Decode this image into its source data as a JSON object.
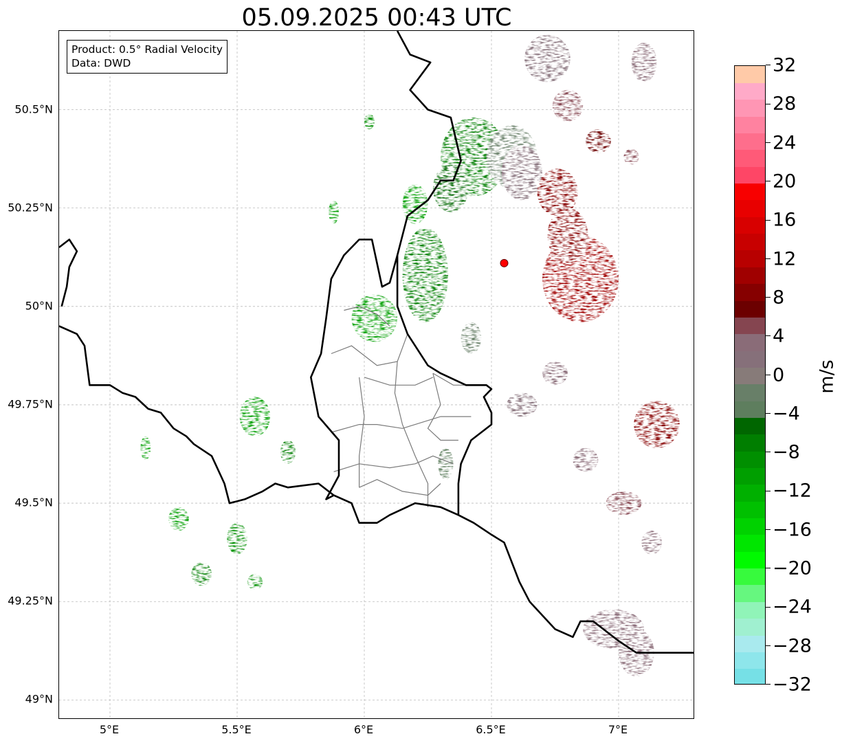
{
  "title": "05.09.2025 00:43 UTC",
  "info_box": {
    "line1": "Product: 0.5° Radial Velocity",
    "line2": "Data: DWD"
  },
  "map": {
    "lon_range": [
      4.8,
      7.3
    ],
    "lat_range": [
      48.95,
      50.7
    ],
    "lon_ticks": [
      {
        "value": 5.0,
        "label": "5°E"
      },
      {
        "value": 5.5,
        "label": "5.5°E"
      },
      {
        "value": 6.0,
        "label": "6°E"
      },
      {
        "value": 6.5,
        "label": "6.5°E"
      },
      {
        "value": 7.0,
        "label": "7°E"
      }
    ],
    "lat_ticks": [
      {
        "value": 50.5,
        "label": "50.5°N"
      },
      {
        "value": 50.25,
        "label": "50.25°N"
      },
      {
        "value": 50.0,
        "label": "50°N"
      },
      {
        "value": 49.75,
        "label": "49.75°N"
      },
      {
        "value": 49.5,
        "label": "49.5°N"
      },
      {
        "value": 49.25,
        "label": "49.25°N"
      },
      {
        "value": 49.0,
        "label": "49°N"
      }
    ],
    "gridlines": true,
    "radar_site": {
      "lon": 6.55,
      "lat": 50.11,
      "color": "#ff0000"
    },
    "echo_areas": [
      {
        "lon": 6.43,
        "lat": 50.38,
        "rx": 0.13,
        "ry": 0.1,
        "velocity": -7
      },
      {
        "lon": 6.34,
        "lat": 50.3,
        "rx": 0.07,
        "ry": 0.06,
        "velocity": -5
      },
      {
        "lon": 6.58,
        "lat": 50.38,
        "rx": 0.1,
        "ry": 0.08,
        "velocity": -2
      },
      {
        "lon": 6.62,
        "lat": 50.34,
        "rx": 0.08,
        "ry": 0.07,
        "velocity": 1
      },
      {
        "lon": 6.76,
        "lat": 50.29,
        "rx": 0.08,
        "ry": 0.06,
        "velocity": 9
      },
      {
        "lon": 6.85,
        "lat": 50.07,
        "rx": 0.15,
        "ry": 0.11,
        "velocity": 10
      },
      {
        "lon": 6.8,
        "lat": 50.18,
        "rx": 0.08,
        "ry": 0.07,
        "velocity": 9
      },
      {
        "lon": 6.24,
        "lat": 50.08,
        "rx": 0.09,
        "ry": 0.12,
        "velocity": -8
      },
      {
        "lon": 6.04,
        "lat": 49.97,
        "rx": 0.09,
        "ry": 0.06,
        "velocity": -10
      },
      {
        "lon": 6.2,
        "lat": 50.26,
        "rx": 0.05,
        "ry": 0.05,
        "velocity": -11
      },
      {
        "lon": 6.72,
        "lat": 50.63,
        "rx": 0.09,
        "ry": 0.06,
        "velocity": 2
      },
      {
        "lon": 6.8,
        "lat": 50.51,
        "rx": 0.06,
        "ry": 0.04,
        "velocity": 5
      },
      {
        "lon": 7.1,
        "lat": 50.62,
        "rx": 0.05,
        "ry": 0.05,
        "velocity": 4
      },
      {
        "lon": 6.92,
        "lat": 50.42,
        "rx": 0.05,
        "ry": 0.03,
        "velocity": 7
      },
      {
        "lon": 7.15,
        "lat": 49.7,
        "rx": 0.09,
        "ry": 0.06,
        "velocity": 9
      },
      {
        "lon": 6.62,
        "lat": 49.75,
        "rx": 0.06,
        "ry": 0.03,
        "velocity": 1
      },
      {
        "lon": 6.75,
        "lat": 49.83,
        "rx": 0.05,
        "ry": 0.03,
        "velocity": 4
      },
      {
        "lon": 6.98,
        "lat": 49.18,
        "rx": 0.12,
        "ry": 0.05,
        "velocity": 3
      },
      {
        "lon": 7.07,
        "lat": 49.12,
        "rx": 0.07,
        "ry": 0.06,
        "velocity": 4
      },
      {
        "lon": 7.02,
        "lat": 49.5,
        "rx": 0.07,
        "ry": 0.03,
        "velocity": 5
      },
      {
        "lon": 7.13,
        "lat": 49.4,
        "rx": 0.04,
        "ry": 0.03,
        "velocity": 4
      },
      {
        "lon": 6.87,
        "lat": 49.61,
        "rx": 0.05,
        "ry": 0.03,
        "velocity": 4
      },
      {
        "lon": 6.42,
        "lat": 49.92,
        "rx": 0.04,
        "ry": 0.04,
        "velocity": -2
      },
      {
        "lon": 6.32,
        "lat": 49.6,
        "rx": 0.03,
        "ry": 0.04,
        "velocity": -3
      },
      {
        "lon": 5.57,
        "lat": 49.72,
        "rx": 0.06,
        "ry": 0.05,
        "velocity": -10
      },
      {
        "lon": 5.7,
        "lat": 49.63,
        "rx": 0.03,
        "ry": 0.03,
        "velocity": -7
      },
      {
        "lon": 5.14,
        "lat": 49.64,
        "rx": 0.02,
        "ry": 0.03,
        "velocity": -11
      },
      {
        "lon": 5.27,
        "lat": 49.46,
        "rx": 0.04,
        "ry": 0.03,
        "velocity": -10
      },
      {
        "lon": 5.5,
        "lat": 49.41,
        "rx": 0.04,
        "ry": 0.04,
        "velocity": -9
      },
      {
        "lon": 5.36,
        "lat": 49.32,
        "rx": 0.04,
        "ry": 0.03,
        "velocity": -7
      },
      {
        "lon": 5.57,
        "lat": 49.3,
        "rx": 0.03,
        "ry": 0.02,
        "velocity": -9
      },
      {
        "lon": 5.88,
        "lat": 50.24,
        "rx": 0.02,
        "ry": 0.03,
        "velocity": -11
      },
      {
        "lon": 6.02,
        "lat": 50.47,
        "rx": 0.02,
        "ry": 0.02,
        "velocity": -9
      },
      {
        "lon": 7.05,
        "lat": 50.38,
        "rx": 0.03,
        "ry": 0.02,
        "velocity": 6
      }
    ],
    "borders": [
      [
        [
          4.8,
          50.15
        ],
        [
          4.84,
          50.17
        ],
        [
          4.87,
          50.14
        ],
        [
          4.84,
          50.1
        ],
        [
          4.83,
          50.05
        ],
        [
          4.81,
          50.0
        ]
      ],
      [
        [
          4.8,
          49.95
        ],
        [
          4.87,
          49.93
        ],
        [
          4.9,
          49.9
        ],
        [
          4.92,
          49.8
        ],
        [
          4.97,
          49.8
        ],
        [
          5.0,
          49.8
        ],
        [
          5.05,
          49.78
        ],
        [
          5.1,
          49.77
        ],
        [
          5.15,
          49.74
        ],
        [
          5.2,
          49.73
        ],
        [
          5.25,
          49.69
        ],
        [
          5.3,
          49.67
        ],
        [
          5.33,
          49.65
        ],
        [
          5.4,
          49.62
        ],
        [
          5.45,
          49.55
        ],
        [
          5.47,
          49.5
        ],
        [
          5.53,
          49.51
        ],
        [
          5.6,
          49.53
        ],
        [
          5.65,
          49.55
        ],
        [
          5.7,
          49.54
        ],
        [
          5.82,
          49.55
        ],
        [
          5.88,
          49.52
        ],
        [
          5.95,
          49.5
        ],
        [
          5.98,
          49.45
        ],
        [
          6.05,
          49.45
        ],
        [
          6.1,
          49.47
        ],
        [
          6.2,
          49.5
        ],
        [
          6.3,
          49.49
        ],
        [
          6.37,
          49.47
        ],
        [
          6.43,
          49.45
        ],
        [
          6.5,
          49.42
        ],
        [
          6.55,
          49.4
        ],
        [
          6.58,
          49.35
        ],
        [
          6.61,
          49.3
        ],
        [
          6.65,
          49.25
        ],
        [
          6.75,
          49.18
        ],
        [
          6.82,
          49.16
        ],
        [
          6.85,
          49.2
        ],
        [
          6.9,
          49.2
        ],
        [
          7.0,
          49.15
        ],
        [
          7.07,
          49.12
        ],
        [
          7.15,
          49.12
        ],
        [
          7.3,
          49.12
        ]
      ],
      [
        [
          6.13,
          50.7
        ],
        [
          6.18,
          50.64
        ],
        [
          6.26,
          50.62
        ],
        [
          6.18,
          50.55
        ],
        [
          6.25,
          50.5
        ],
        [
          6.34,
          50.48
        ],
        [
          6.38,
          50.37
        ],
        [
          6.35,
          50.32
        ],
        [
          6.3,
          50.32
        ],
        [
          6.25,
          50.27
        ],
        [
          6.17,
          50.23
        ],
        [
          6.15,
          50.18
        ],
        [
          6.13,
          50.13
        ],
        [
          6.1,
          50.06
        ],
        [
          6.07,
          50.05
        ],
        [
          6.03,
          50.17
        ],
        [
          5.98,
          50.17
        ],
        [
          5.92,
          50.13
        ],
        [
          5.87,
          50.07
        ],
        [
          5.85,
          49.97
        ],
        [
          5.83,
          49.88
        ],
        [
          5.79,
          49.82
        ],
        [
          5.82,
          49.72
        ],
        [
          5.9,
          49.66
        ],
        [
          5.9,
          49.57
        ],
        [
          5.85,
          49.51
        ],
        [
          5.88,
          49.52
        ]
      ],
      [
        [
          6.13,
          50.13
        ],
        [
          6.13,
          50.0
        ],
        [
          6.17,
          49.93
        ],
        [
          6.25,
          49.85
        ],
        [
          6.3,
          49.83
        ],
        [
          6.4,
          49.8
        ],
        [
          6.48,
          49.8
        ],
        [
          6.5,
          49.79
        ],
        [
          6.47,
          49.77
        ],
        [
          6.5,
          49.73
        ],
        [
          6.5,
          49.7
        ],
        [
          6.42,
          49.66
        ],
        [
          6.38,
          49.6
        ],
        [
          6.37,
          49.55
        ],
        [
          6.37,
          49.47
        ]
      ]
    ],
    "districts": [
      [
        [
          5.87,
          49.88
        ],
        [
          5.95,
          49.9
        ],
        [
          6.05,
          49.85
        ],
        [
          6.13,
          49.86
        ],
        [
          6.17,
          49.93
        ]
      ],
      [
        [
          5.92,
          49.99
        ],
        [
          5.98,
          50.0
        ],
        [
          6.05,
          49.98
        ],
        [
          6.1,
          49.95
        ]
      ],
      [
        [
          6.0,
          49.82
        ],
        [
          6.1,
          49.8
        ],
        [
          6.2,
          49.8
        ],
        [
          6.27,
          49.82
        ]
      ],
      [
        [
          5.98,
          49.82
        ],
        [
          6.0,
          49.72
        ],
        [
          5.98,
          49.62
        ],
        [
          5.98,
          49.54
        ]
      ],
      [
        [
          6.13,
          49.86
        ],
        [
          6.12,
          49.78
        ],
        [
          6.15,
          49.7
        ],
        [
          6.2,
          49.62
        ],
        [
          6.25,
          49.55
        ],
        [
          6.25,
          49.49
        ]
      ],
      [
        [
          6.27,
          49.83
        ],
        [
          6.3,
          49.75
        ],
        [
          6.25,
          49.69
        ],
        [
          6.3,
          49.66
        ],
        [
          6.37,
          49.66
        ]
      ],
      [
        [
          5.87,
          49.68
        ],
        [
          5.98,
          49.7
        ],
        [
          6.05,
          49.7
        ],
        [
          6.15,
          49.69
        ],
        [
          6.2,
          49.7
        ],
        [
          6.3,
          49.72
        ],
        [
          6.42,
          49.72
        ]
      ],
      [
        [
          5.88,
          49.58
        ],
        [
          5.98,
          49.6
        ],
        [
          6.1,
          49.59
        ],
        [
          6.2,
          49.6
        ],
        [
          6.27,
          49.62
        ],
        [
          6.35,
          49.6
        ]
      ],
      [
        [
          6.27,
          49.83
        ],
        [
          6.35,
          49.8
        ],
        [
          6.4,
          49.8
        ]
      ],
      [
        [
          5.98,
          49.54
        ],
        [
          6.05,
          49.56
        ],
        [
          6.15,
          49.53
        ],
        [
          6.25,
          49.52
        ],
        [
          6.3,
          49.55
        ]
      ]
    ]
  },
  "colorbar": {
    "unit": "m/s",
    "min": -32,
    "max": 32,
    "step": 4,
    "tick_labels": [
      "−32",
      "−28",
      "−24",
      "−20",
      "−16",
      "−12",
      "−8",
      "−4",
      "0",
      "4",
      "8",
      "12",
      "16",
      "20",
      "24",
      "28",
      "32"
    ],
    "colors": [
      "#76e0e6",
      "#8ee6eb",
      "#a9eaee",
      "#a0f0d0",
      "#90f4b8",
      "#66f77f",
      "#37fa3d",
      "#00fa00",
      "#00e600",
      "#00d200",
      "#00c000",
      "#00b000",
      "#009f00",
      "#008f00",
      "#007e00",
      "#006600",
      "#5e7e5e",
      "#687f68",
      "#877b79",
      "#86707a",
      "#8a6c78",
      "#854550",
      "#6c0000",
      "#860000",
      "#a00000",
      "#b80000",
      "#c80000",
      "#d80000",
      "#e80000",
      "#f80000",
      "#fe4666",
      "#ff5a78",
      "#fe6e8c",
      "#ff82a0",
      "#ff96b4",
      "#ffaac8",
      "#ffcaa8"
    ]
  }
}
